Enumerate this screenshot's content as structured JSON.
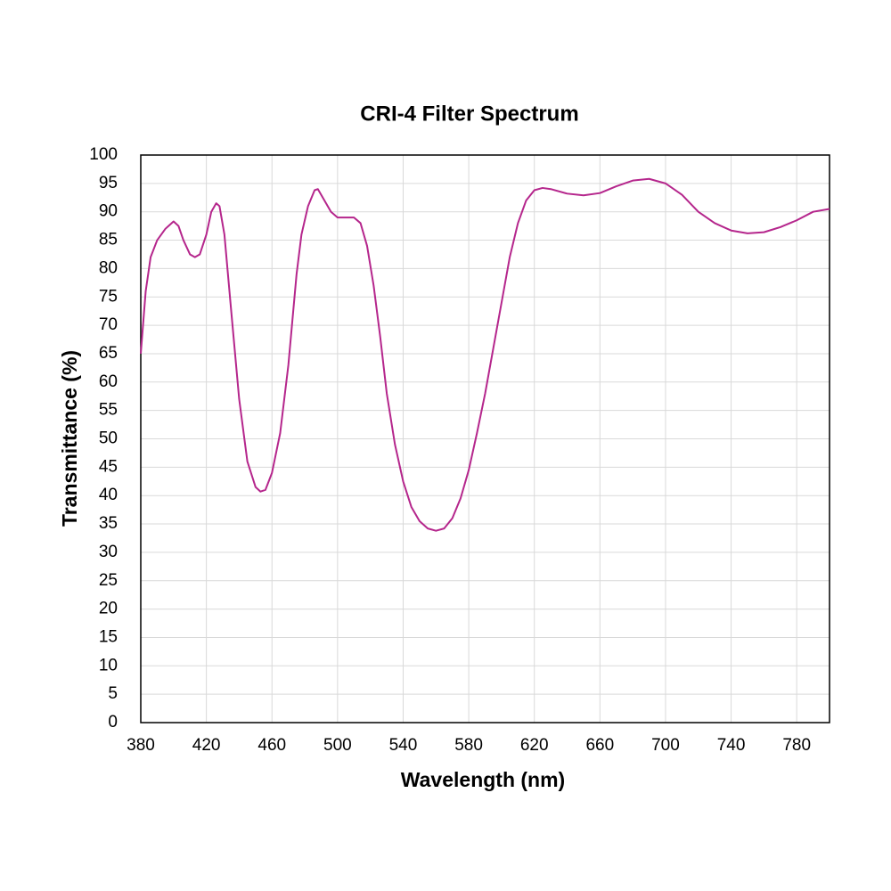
{
  "chart_data": {
    "type": "line",
    "title": "CRI-4 Filter Spectrum",
    "x_label": "Wavelength (nm)",
    "y_label": "Transmittance (%)",
    "x": [
      380,
      383,
      386,
      390,
      395,
      400,
      403,
      406,
      410,
      413,
      416,
      420,
      423,
      426,
      428,
      431,
      435,
      440,
      445,
      450,
      453,
      456,
      460,
      465,
      470,
      475,
      478,
      482,
      486,
      488,
      492,
      496,
      500,
      505,
      510,
      514,
      518,
      522,
      526,
      530,
      535,
      540,
      545,
      550,
      555,
      560,
      565,
      570,
      575,
      580,
      585,
      590,
      595,
      600,
      605,
      610,
      615,
      620,
      625,
      630,
      640,
      650,
      660,
      670,
      680,
      690,
      700,
      710,
      720,
      730,
      740,
      750,
      760,
      770,
      780,
      790,
      800
    ],
    "series": [
      {
        "name": "CRI-4",
        "color": "#b5268c",
        "values": [
          65,
          76,
          82,
          85,
          87,
          88.3,
          87.5,
          85,
          82.5,
          82,
          82.5,
          86,
          90,
          91.5,
          91,
          86,
          73,
          57,
          46,
          41.5,
          40.7,
          41,
          44,
          51,
          63,
          79,
          86,
          91,
          93.8,
          94,
          92,
          90,
          89,
          89,
          89,
          88,
          84,
          77,
          68,
          58,
          49,
          42.5,
          38,
          35.5,
          34.2,
          33.8,
          34.2,
          36,
          39.5,
          44.5,
          51,
          58,
          66,
          74,
          82,
          88,
          92,
          93.8,
          94.2,
          94,
          93.2,
          92.9,
          93.3,
          94.5,
          95.5,
          95.8,
          95,
          93,
          90,
          88,
          86.7,
          86.2,
          86.4,
          87.3,
          88.5,
          90,
          90.5
        ]
      }
    ],
    "xlim": [
      380,
      800
    ],
    "xticks": [
      380,
      420,
      460,
      500,
      540,
      580,
      620,
      660,
      700,
      740,
      780
    ],
    "ylim": [
      0,
      100
    ],
    "yticks": [
      0,
      5,
      10,
      15,
      20,
      25,
      30,
      35,
      40,
      45,
      50,
      55,
      60,
      65,
      70,
      75,
      80,
      85,
      90,
      95,
      100
    ],
    "grid": true
  }
}
